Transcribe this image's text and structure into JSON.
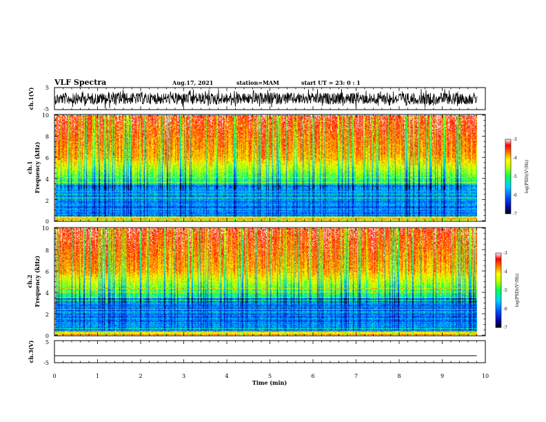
{
  "header": {
    "title": "VLF Spectra",
    "date": "Aug.17, 2021",
    "station": "station=MAM",
    "start": "start  UT  =   23: 0  : 1"
  },
  "colors": {
    "waveform": "#000000",
    "axis": "#000000"
  },
  "chart_data": [
    {
      "type": "line",
      "panel": "ch1-waveform",
      "ylabel": "ch.1(V)",
      "ylim": [
        -5,
        5
      ],
      "yticks": [
        "5",
        "-5"
      ],
      "xlim": [
        0,
        10
      ],
      "note_values": "dense noisy waveform spanning roughly -4 to 4 V"
    },
    {
      "type": "heatmap",
      "panel": "ch1-spectrogram",
      "ylabel": "ch.1\nFrequency (kHz)",
      "ylim": [
        0,
        10
      ],
      "yticks": [
        "0",
        "2",
        "4",
        "6",
        "8",
        "10"
      ],
      "xlim": [
        0,
        9.8
      ],
      "colorbar": {
        "label": "log(PSD)(V²/Hz)",
        "range": [
          -7,
          -3
        ],
        "ticks": [
          "-3",
          "-4",
          "-5",
          "-6",
          "-7"
        ]
      }
    },
    {
      "type": "heatmap",
      "panel": "ch2-spectrogram",
      "ylabel": "ch.2\nFrequency (kHz)",
      "ylim": [
        0,
        10
      ],
      "yticks": [
        "0",
        "2",
        "4",
        "6",
        "8",
        "10"
      ],
      "xlim": [
        0,
        9.8
      ],
      "colorbar": {
        "label": "log(PSD)(V²/Hz)",
        "range": [
          -7,
          -3
        ],
        "ticks": [
          "-3",
          "-4",
          "-5",
          "-6",
          "-7"
        ]
      }
    },
    {
      "type": "line",
      "panel": "ch3-waveform",
      "ylabel": "ch.3(V)",
      "ylim": [
        -5,
        5
      ],
      "yticks": [
        "5",
        "-5"
      ],
      "xlim": [
        0,
        10
      ],
      "x": [
        0,
        9.8
      ],
      "values": [
        -2,
        -2
      ]
    }
  ],
  "xaxis": {
    "label": "Time  (min)",
    "ticks": [
      "0",
      "1",
      "2",
      "3",
      "4",
      "5",
      "6",
      "7",
      "8",
      "9",
      "10"
    ]
  }
}
